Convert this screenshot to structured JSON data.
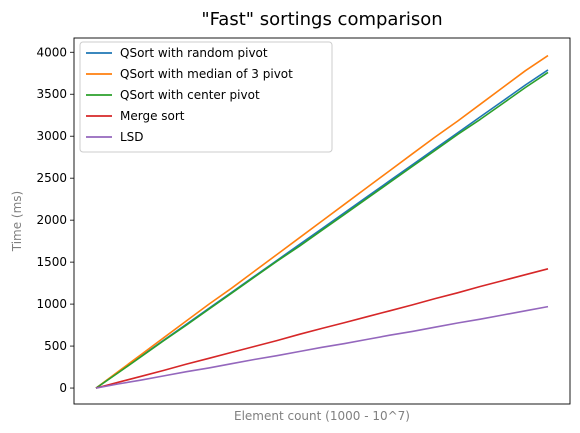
{
  "chart_data": {
    "type": "line",
    "title": "\"Fast\" sortings comparison",
    "xlabel": "Element count (1000 - 10^7)",
    "ylabel": "Time (ms)",
    "ylim": [
      -190,
      4170
    ],
    "yticks": [
      0,
      500,
      1000,
      1500,
      2000,
      2500,
      3000,
      3500,
      4000
    ],
    "xticks_visible": false,
    "grid": false,
    "legend_position": "top-left",
    "x": [
      0,
      5,
      10,
      15,
      20,
      25,
      30,
      35,
      40,
      45,
      50,
      55,
      60,
      65,
      70,
      75,
      80,
      85,
      90,
      95,
      100
    ],
    "series": [
      {
        "name": "QSort with random pivot",
        "color": "#1f77b4",
        "values": [
          0,
          190,
          380,
          570,
          760,
          950,
          1140,
          1330,
          1520,
          1710,
          1900,
          2090,
          2280,
          2470,
          2660,
          2850,
          3040,
          3230,
          3420,
          3610,
          3790
        ]
      },
      {
        "name": "QSort with median of 3 pivot",
        "color": "#ff7f0e",
        "values": [
          0,
          200,
          400,
          600,
          800,
          1000,
          1190,
          1390,
          1590,
          1790,
          1990,
          2190,
          2390,
          2590,
          2790,
          2990,
          3180,
          3380,
          3580,
          3780,
          3960
        ]
      },
      {
        "name": "QSort with center pivot",
        "color": "#2ca02c",
        "values": [
          0,
          185,
          375,
          565,
          750,
          940,
          1130,
          1320,
          1510,
          1690,
          1880,
          2070,
          2260,
          2450,
          2640,
          2830,
          3020,
          3200,
          3390,
          3580,
          3760
        ]
      },
      {
        "name": "Merge sort",
        "color": "#d62728",
        "values": [
          0,
          70,
          140,
          210,
          285,
          355,
          425,
          495,
          565,
          640,
          710,
          780,
          850,
          920,
          990,
          1065,
          1135,
          1210,
          1280,
          1350,
          1420
        ]
      },
      {
        "name": "LSD",
        "color": "#9467bd",
        "values": [
          0,
          50,
          95,
          145,
          195,
          240,
          290,
          340,
          385,
          435,
          485,
          530,
          580,
          630,
          675,
          725,
          775,
          820,
          870,
          920,
          970
        ]
      }
    ]
  }
}
